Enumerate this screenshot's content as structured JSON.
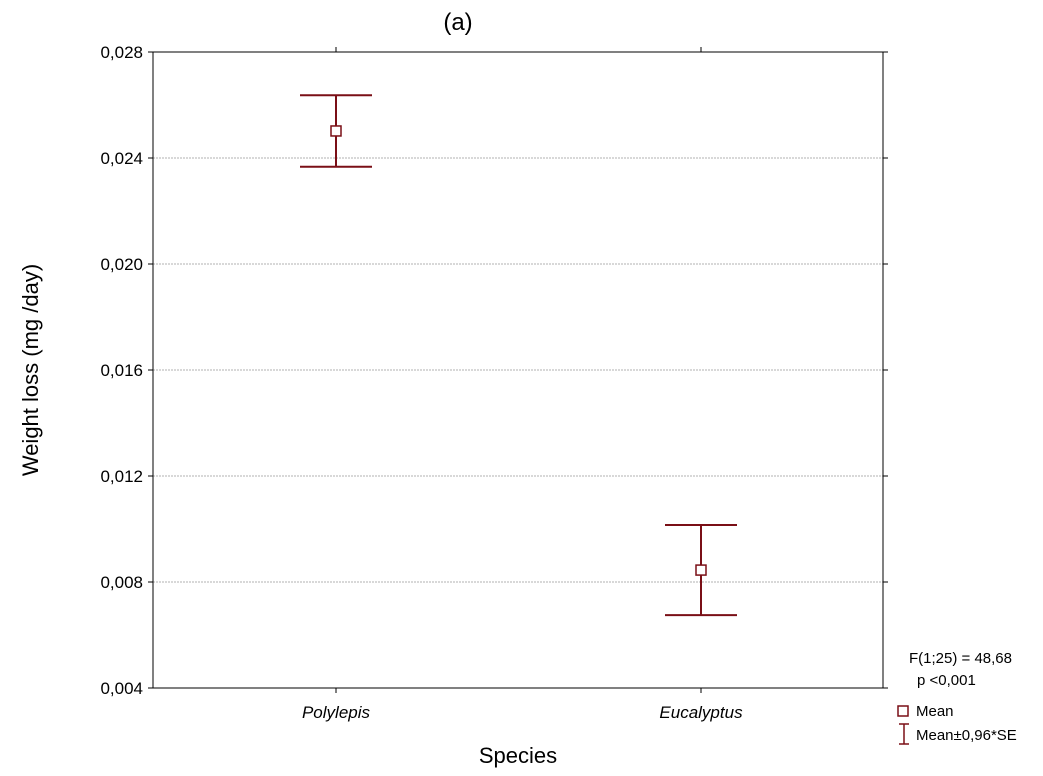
{
  "chart_data": {
    "type": "scatter",
    "title": "(a)",
    "xlabel": "Species",
    "ylabel": "Weight loss (mg /day)",
    "categories": [
      "Polylepis",
      "Eucalyptus"
    ],
    "series": [
      {
        "name": "Mean",
        "values": [
          0.02502,
          0.00845
        ],
        "error_low": [
          0.02367,
          0.00675
        ],
        "error_high": [
          0.02637,
          0.01015
        ]
      }
    ],
    "ylim": [
      0.004,
      0.028
    ],
    "yticks": [
      0.004,
      0.008,
      0.012,
      0.016,
      0.02,
      0.024,
      0.028
    ],
    "ytick_labels": [
      "0,004",
      "0,008",
      "0,012",
      "0,016",
      "0,020",
      "0,024",
      "0,028"
    ],
    "grid": true,
    "legend": {
      "placement": "bottom-right",
      "entries": [
        "Mean",
        "Mean±0,96*SE"
      ]
    },
    "annotations": [
      "F(1;25) = 48,68",
      "p <0,001"
    ],
    "colors": {
      "series": "#7a0f16",
      "grid": "#b0b0b0",
      "axis": "#000000"
    }
  }
}
